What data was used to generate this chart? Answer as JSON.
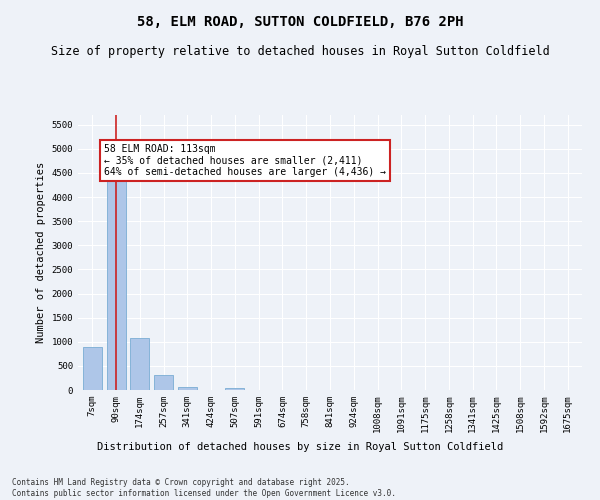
{
  "title": "58, ELM ROAD, SUTTON COLDFIELD, B76 2PH",
  "subtitle": "Size of property relative to detached houses in Royal Sutton Coldfield",
  "xlabel": "Distribution of detached houses by size in Royal Sutton Coldfield",
  "ylabel": "Number of detached properties",
  "footnote": "Contains HM Land Registry data © Crown copyright and database right 2025.\nContains public sector information licensed under the Open Government Licence v3.0.",
  "categories": [
    "7sqm",
    "90sqm",
    "174sqm",
    "257sqm",
    "341sqm",
    "424sqm",
    "507sqm",
    "591sqm",
    "674sqm",
    "758sqm",
    "841sqm",
    "924sqm",
    "1008sqm",
    "1091sqm",
    "1175sqm",
    "1258sqm",
    "1341sqm",
    "1425sqm",
    "1508sqm",
    "1592sqm",
    "1675sqm"
  ],
  "values": [
    900,
    4570,
    1075,
    310,
    65,
    0,
    50,
    0,
    0,
    0,
    0,
    0,
    0,
    0,
    0,
    0,
    0,
    0,
    0,
    0,
    0
  ],
  "bar_color": "#aec6e8",
  "bar_edge_color": "#7aadd4",
  "vline_x_index": 1,
  "vline_color": "#cc2222",
  "annotation_text": "58 ELM ROAD: 113sqm\n← 35% of detached houses are smaller (2,411)\n64% of semi-detached houses are larger (4,436) →",
  "ylim": [
    0,
    5700
  ],
  "yticks": [
    0,
    500,
    1000,
    1500,
    2000,
    2500,
    3000,
    3500,
    4000,
    4500,
    5000,
    5500
  ],
  "bg_color": "#eef2f8",
  "grid_color": "#ffffff",
  "title_fontsize": 10,
  "subtitle_fontsize": 8.5,
  "axis_label_fontsize": 7.5,
  "tick_fontsize": 6.5,
  "annotation_fontsize": 7
}
